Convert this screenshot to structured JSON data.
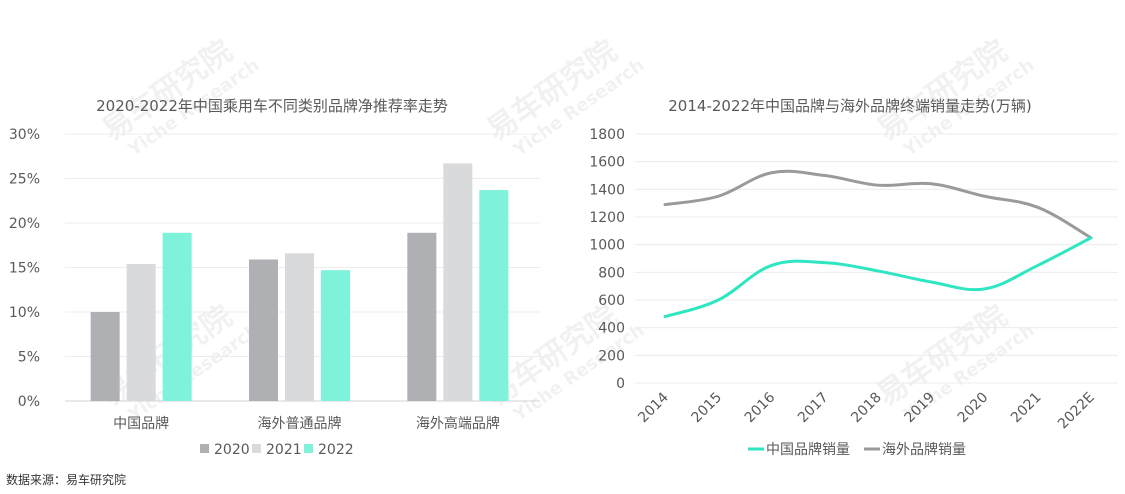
{
  "source_note": "数据来源：易车研究院",
  "watermark": {
    "cn": "易车研究院",
    "en": "Yiche Research"
  },
  "chart_data": [
    {
      "type": "bar",
      "title": "2020-2022年中国乘用车不同类别品牌净推荐率走势",
      "categories": [
        "中国品牌",
        "海外普通品牌",
        "海外高端品牌"
      ],
      "ylim": [
        0,
        30
      ],
      "yticks": [
        "0%",
        "5%",
        "10%",
        "15%",
        "20%",
        "25%",
        "30%"
      ],
      "grid": true,
      "legend_position": "bottom",
      "series": [
        {
          "name": "2020",
          "color": "#aeb0b3",
          "values": [
            10.0,
            15.9,
            18.9
          ]
        },
        {
          "name": "2021",
          "color": "#d9dadc",
          "values": [
            15.4,
            16.6,
            26.7
          ]
        },
        {
          "name": "2022",
          "color": "#7ff2dc",
          "values": [
            18.9,
            14.7,
            23.7
          ]
        }
      ]
    },
    {
      "type": "line",
      "title": "2014-2022年中国品牌与海外品牌终端销量走势(万辆)",
      "x": [
        "2014",
        "2015",
        "2016",
        "2017",
        "2018",
        "2019",
        "2020",
        "2021",
        "2022E"
      ],
      "ylim": [
        0,
        1800
      ],
      "yticks": [
        "0",
        "200",
        "400",
        "600",
        "800",
        "1000",
        "1200",
        "1400",
        "1600",
        "1800"
      ],
      "grid": true,
      "legend_position": "bottom",
      "series": [
        {
          "name": "中国品牌销量",
          "color": "#2ee6c1",
          "values": [
            480,
            600,
            850,
            870,
            810,
            730,
            680,
            850,
            1050
          ]
        },
        {
          "name": "海外品牌销量",
          "color": "#9a9a9a",
          "values": [
            1290,
            1350,
            1520,
            1500,
            1430,
            1440,
            1350,
            1270,
            1050
          ]
        }
      ]
    }
  ]
}
